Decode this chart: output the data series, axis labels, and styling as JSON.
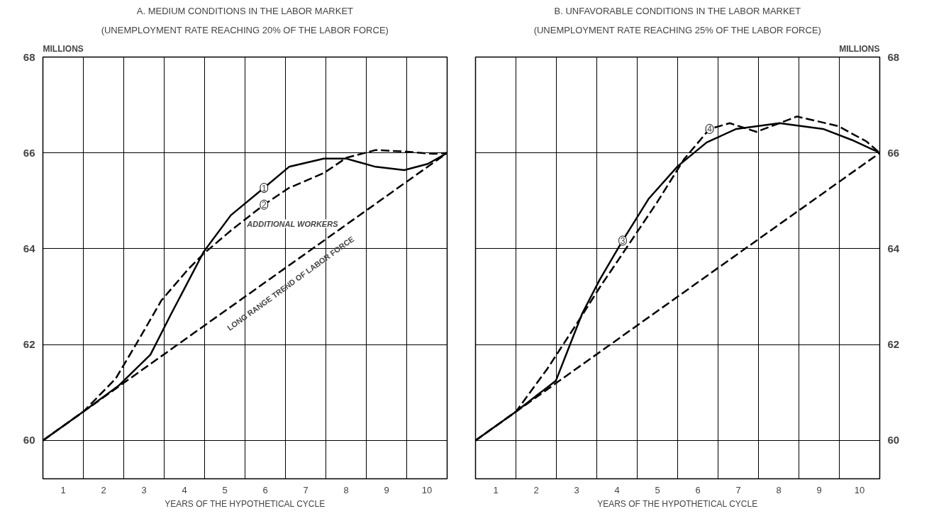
{
  "chart_data": [
    {
      "type": "line",
      "title": "A. MEDIUM CONDITIONS IN THE LABOR MARKET",
      "subtitle": "(UNEMPLOYMENT RATE REACHING 20% OF THE LABOR FORCE)",
      "xlabel": "YEARS OF THE HYPOTHETICAL CYCLE",
      "ylabel": "MILLIONS",
      "xlim": [
        0.5,
        10.5
      ],
      "xticks": [
        1,
        2,
        3,
        4,
        5,
        6,
        7,
        8,
        9,
        10
      ],
      "ylim": [
        59.2,
        68
      ],
      "yticks": [
        60,
        62,
        64,
        66,
        68
      ],
      "grid": true,
      "series": [
        {
          "color": "#000000",
          "line_style": "solid",
          "x": [
            0.5,
            1.5,
            2.37,
            3.16,
            3.66,
            4.48,
            5.15,
            5.97,
            6.59,
            7.45,
            8.01,
            8.73,
            9.44,
            10.02,
            10.5
          ],
          "values": [
            60,
            60.6,
            61.14,
            61.79,
            62.62,
            63.94,
            64.7,
            65.27,
            65.71,
            65.88,
            65.88,
            65.71,
            65.64,
            65.77,
            66
          ]
        },
        {
          "color": "#000000",
          "line_style": "dashed",
          "x": [
            0.5,
            1.5,
            2.3,
            2.87,
            3.43,
            4.08,
            4.48,
            5.15,
            5.97,
            6.59,
            7.45,
            8.01,
            8.73,
            9.44,
            10.16,
            10.5
          ],
          "values": [
            60,
            60.6,
            61.29,
            62.1,
            62.92,
            63.56,
            63.9,
            64.38,
            64.92,
            65.27,
            65.58,
            65.9,
            66.06,
            66.03,
            65.98,
            66
          ]
        },
        {
          "color": "#000000",
          "line_style": "dashed",
          "x": [
            0.5,
            10.5
          ],
          "values": [
            60,
            66
          ]
        }
      ],
      "annotations": [
        {
          "text": "1",
          "x": 5.97,
          "y": 65.27
        },
        {
          "text": "2",
          "x": 5.97,
          "y": 64.92
        },
        "ADDITIONAL WORKERS",
        {
          "text": "LONG RANGE TREND OF LABOR FORCE",
          "x": 6.4,
          "y": 63.54
        }
      ]
    },
    {
      "type": "line",
      "title": "B. UNFAVORABLE CONDITIONS IN THE LABOR MARKET",
      "subtitle": "(UNEMPLOYMENT RATE REACHING 25% OF THE LABOR FORCE)",
      "xlabel": "YEARS OF THE HYPOTHETICAL CYCLE",
      "ylabel": "MILLIONS",
      "xlim": [
        0.5,
        10.5
      ],
      "xticks": [
        1,
        2,
        3,
        4,
        5,
        6,
        7,
        8,
        9,
        10
      ],
      "ylim": [
        59.2,
        68
      ],
      "yticks": [
        60,
        62,
        64,
        66,
        68
      ],
      "grid": true,
      "series": [
        {
          "color": "#000000",
          "line_style": "solid",
          "x": [
            0.5,
            1.5,
            2.49,
            3.14,
            3.57,
            4.14,
            4.79,
            5.5,
            6.22,
            6.95,
            8.02,
            9.1,
            9.81,
            10.5
          ],
          "values": [
            60,
            60.6,
            61.25,
            62.65,
            63.35,
            64.17,
            65.05,
            65.72,
            66.22,
            66.5,
            66.62,
            66.5,
            66.27,
            66
          ]
        },
        {
          "color": "#000000",
          "line_style": "dashed",
          "x": [
            0.5,
            1.5,
            2.28,
            3.0,
            3.57,
            4.14,
            5.0,
            5.66,
            6.29,
            6.79,
            7.45,
            8.02,
            8.45,
            9.47,
            10.17,
            10.5
          ],
          "values": [
            60,
            60.6,
            61.5,
            62.43,
            63.19,
            63.9,
            64.98,
            65.87,
            66.5,
            66.62,
            66.44,
            66.62,
            66.76,
            66.56,
            66.24,
            66
          ]
        },
        {
          "color": "#000000",
          "line_style": "dashed",
          "x": [
            0.5,
            10.5
          ],
          "values": [
            60,
            66
          ]
        }
      ],
      "annotations": [
        {
          "text": "3",
          "x": 4.14,
          "y": 64.17
        },
        {
          "text": "4",
          "x": 6.29,
          "y": 66.5
        }
      ]
    }
  ]
}
